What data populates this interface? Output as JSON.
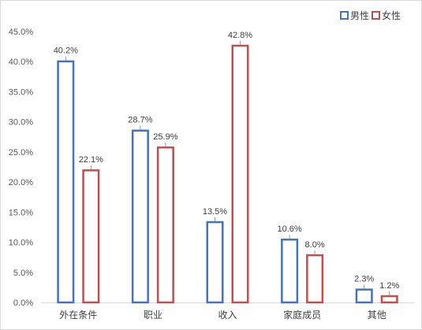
{
  "chart_data": {
    "type": "bar",
    "categories": [
      "外在条件",
      "职业",
      "收入",
      "家庭成员",
      "其他"
    ],
    "series": [
      {
        "name": "男性",
        "values": [
          40.2,
          28.7,
          13.5,
          10.6,
          2.3
        ],
        "color": "#4472c4"
      },
      {
        "name": "女性",
        "values": [
          22.1,
          25.9,
          42.8,
          8.0,
          1.2
        ],
        "color": "#c0504d"
      }
    ],
    "data_labels": [
      [
        "40.2%",
        "28.7%",
        "13.5%",
        "10.6%",
        "2.3%"
      ],
      [
        "22.1%",
        "25.9%",
        "42.8%",
        "8.0%",
        "1.2%"
      ]
    ],
    "yticks": [
      "0.0%",
      "5.0%",
      "10.0%",
      "15.0%",
      "20.0%",
      "25.0%",
      "30.0%",
      "35.0%",
      "40.0%",
      "45.0%"
    ],
    "ylim": [
      0,
      45
    ],
    "grid": false,
    "legend_position": "top-right",
    "title": "",
    "xlabel": "",
    "ylabel": ""
  }
}
